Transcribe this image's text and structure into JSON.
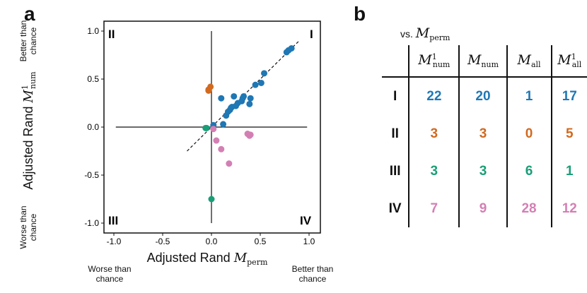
{
  "panel_a_label": "a",
  "panel_b_label": "b",
  "quadrants": {
    "q1": "I",
    "q2": "II",
    "q3": "III",
    "q4": "IV"
  },
  "annotations": {
    "better_y": "Better than chance",
    "worse_y": "Worse than chance",
    "worse_x": "Worse than chance",
    "better_x": "Better than chance"
  },
  "colors": {
    "blue": "#1f77b4",
    "orange": "#d2691e",
    "green": "#1a9e77",
    "pink": "#d47fb4"
  },
  "chart_data": {
    "type": "scatter",
    "xlabel_text": "Adjusted Rand",
    "xlabel_symbol": "M",
    "xlabel_sub": "perm",
    "ylabel_text": "Adjusted Rand",
    "ylabel_symbol": "M",
    "ylabel_sub": "num",
    "ylabel_sup": "1",
    "xlim": [
      -1.0,
      1.0
    ],
    "ylim": [
      -1.0,
      1.0
    ],
    "xticks": [
      -1.0,
      -0.5,
      0.0,
      0.5,
      1.0
    ],
    "xtick_labels": [
      "-1.0",
      "-0.5",
      "0.0",
      "0.5",
      "1.0"
    ],
    "yticks": [
      1.0,
      0.5,
      0.0,
      -0.5,
      -1.0
    ],
    "ytick_labels": [
      "1.0",
      "0.5",
      "0.0",
      "-0.5",
      "-1.0"
    ],
    "diagonal": [
      [
        -0.25,
        -0.25
      ],
      [
        0.9,
        0.9
      ]
    ],
    "series": [
      {
        "color": "blue",
        "points": [
          [
            0.02,
            0.02
          ],
          [
            0.1,
            0.3
          ],
          [
            0.12,
            0.03
          ],
          [
            0.15,
            0.12
          ],
          [
            0.17,
            0.16
          ],
          [
            0.19,
            0.18
          ],
          [
            0.21,
            0.21
          ],
          [
            0.23,
            0.32
          ],
          [
            0.27,
            0.25
          ],
          [
            0.31,
            0.27
          ],
          [
            0.33,
            0.32
          ],
          [
            0.39,
            0.24
          ],
          [
            0.4,
            0.3
          ],
          [
            0.45,
            0.44
          ],
          [
            0.51,
            0.46
          ],
          [
            0.54,
            0.56
          ],
          [
            0.77,
            0.78
          ],
          [
            0.79,
            0.8
          ],
          [
            0.82,
            0.82
          ],
          [
            0.2,
            0.2
          ],
          [
            0.25,
            0.22
          ],
          [
            0.32,
            0.3
          ]
        ]
      },
      {
        "color": "orange",
        "points": [
          [
            -0.03,
            0.38
          ],
          [
            -0.01,
            0.42
          ],
          [
            -0.03,
            0.39
          ]
        ]
      },
      {
        "color": "green",
        "points": [
          [
            -0.06,
            -0.01
          ],
          [
            0.0,
            -0.75
          ],
          [
            -0.05,
            -0.01
          ]
        ]
      },
      {
        "color": "pink",
        "points": [
          [
            0.02,
            -0.02
          ],
          [
            0.05,
            -0.14
          ],
          [
            0.1,
            -0.23
          ],
          [
            0.18,
            -0.38
          ],
          [
            0.37,
            -0.07
          ],
          [
            0.4,
            -0.08
          ],
          [
            0.39,
            -0.09
          ]
        ]
      }
    ]
  },
  "table": {
    "vs_text": "vs.",
    "vs_symbol": "M",
    "vs_sub": "perm",
    "columns": [
      {
        "sym": "M",
        "sub": "num",
        "sup": "1"
      },
      {
        "sym": "M",
        "sub": "num",
        "sup": ""
      },
      {
        "sym": "M",
        "sub": "all",
        "sup": ""
      },
      {
        "sym": "M",
        "sub": "all",
        "sup": "1"
      }
    ],
    "rows": [
      {
        "label": "I",
        "color": "blue",
        "values": [
          "22",
          "20",
          "1",
          "17"
        ]
      },
      {
        "label": "II",
        "color": "orange",
        "values": [
          "3",
          "3",
          "0",
          "5"
        ]
      },
      {
        "label": "III",
        "color": "green",
        "values": [
          "3",
          "3",
          "6",
          "1"
        ]
      },
      {
        "label": "IV",
        "color": "pink",
        "values": [
          "7",
          "9",
          "28",
          "12"
        ]
      }
    ]
  }
}
